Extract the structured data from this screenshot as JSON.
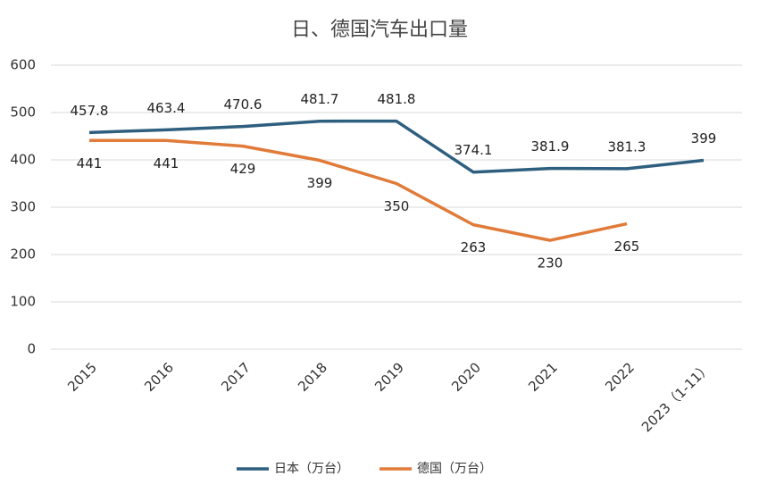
{
  "chart_data": {
    "type": "line",
    "title": "日、德国汽车出口量",
    "categories": [
      "2015",
      "2016",
      "2017",
      "2018",
      "2019",
      "2020",
      "2021",
      "2022",
      "2023（1-11）"
    ],
    "series": [
      {
        "name": "日本（万台）",
        "color": "#2e5f7f",
        "values": [
          457.8,
          463.4,
          470.6,
          481.7,
          481.8,
          374.1,
          381.9,
          381.3,
          399
        ]
      },
      {
        "name": "德国（万台）",
        "color": "#e07b39",
        "values": [
          441,
          441,
          429,
          399,
          350,
          263,
          230,
          265,
          null
        ]
      }
    ],
    "ylim": [
      0,
      600
    ],
    "yticks": [
      0,
      100,
      200,
      300,
      400,
      500,
      600
    ],
    "grid": true,
    "legend": "bottom"
  }
}
